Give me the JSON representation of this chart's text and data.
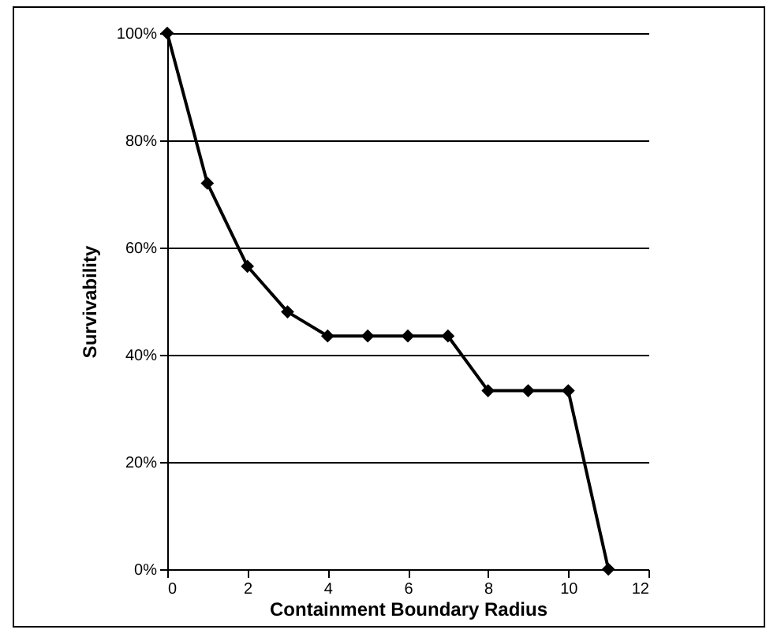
{
  "chart_data": {
    "type": "line",
    "xlabel": "Containment Boundary Radius",
    "ylabel": "Survivability",
    "x": [
      0,
      1,
      2,
      3,
      4,
      5,
      6,
      7,
      8,
      9,
      10,
      11
    ],
    "series": [
      {
        "color": "#000000",
        "values": [
          100,
          72,
          56.5,
          48,
          43.5,
          43.5,
          43.5,
          43.5,
          33.3,
          33.3,
          33.3,
          0
        ]
      }
    ],
    "xlim": [
      0,
      12
    ],
    "xticks": [
      0,
      2,
      4,
      6,
      8,
      10,
      12
    ],
    "ylim": [
      0,
      100
    ],
    "yticks": [
      {
        "value": 0,
        "label": "0%"
      },
      {
        "value": 20,
        "label": "20%"
      },
      {
        "value": 40,
        "label": "40%"
      },
      {
        "value": 60,
        "label": "60%"
      },
      {
        "value": 80,
        "label": "80%"
      },
      {
        "value": 100,
        "label": "100%"
      }
    ],
    "grid": "y",
    "marker": "diamond",
    "line_style": "solid"
  }
}
